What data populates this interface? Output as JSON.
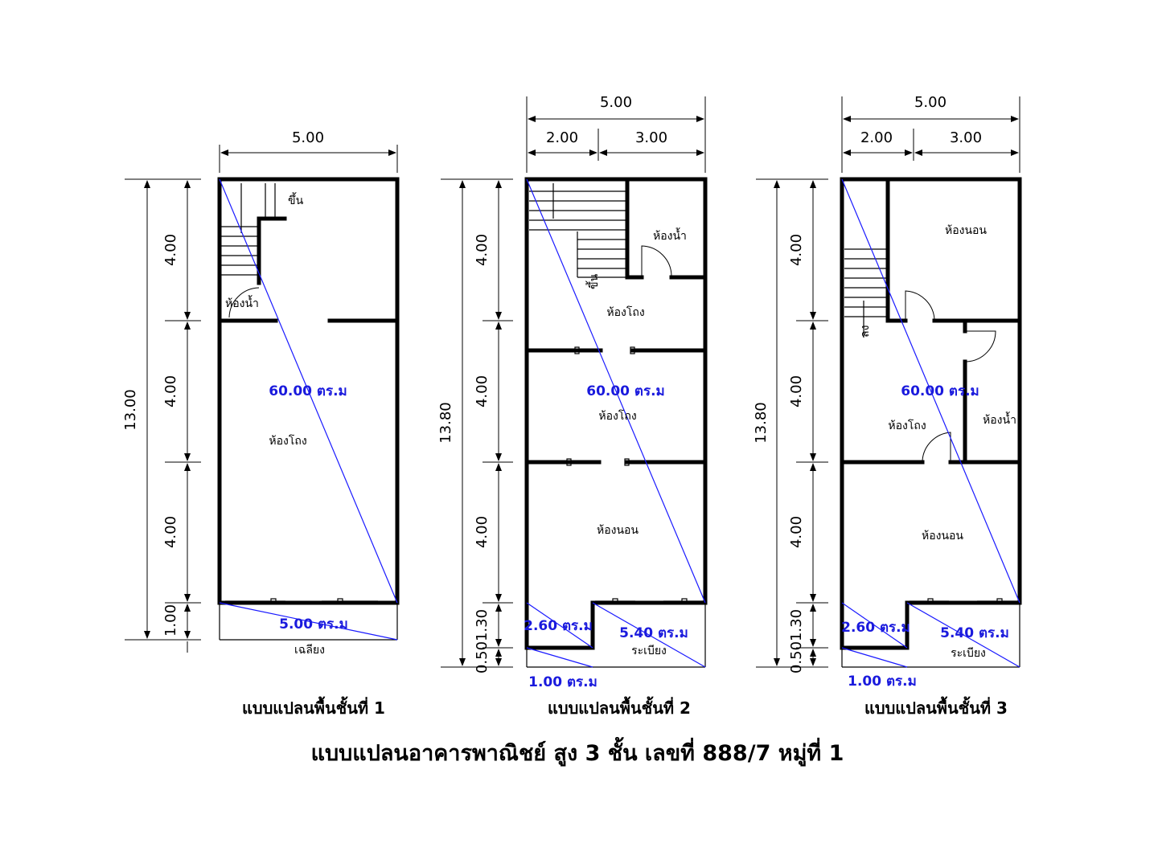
{
  "title": "แบบแปลนอาคารพาณิชย์ สูง 3 ชั้น เลขที่ 888/7 หมู่ที่ 1",
  "plans": [
    {
      "caption": "แบบแปลนพื้นชั้นที่ 1",
      "dims": {
        "width_total": "5.00",
        "height_total": "13.00",
        "seg1": "4.00",
        "seg2": "4.00",
        "seg3": "4.00",
        "seg4": "1.00"
      },
      "rooms": {
        "bath": "ห้องน้ำ",
        "hall": "ห้องโถง",
        "porch": "เฉลียง",
        "up": "ขึ้น"
      },
      "areas": {
        "main": "60.00 ตร.ม",
        "porch": "5.00 ตร.ม"
      }
    },
    {
      "caption": "แบบแปลนพื้นชั้นที่ 2",
      "dims": {
        "width_total": "5.00",
        "width_a": "2.00",
        "width_b": "3.00",
        "height_total": "13.80",
        "seg1": "4.00",
        "seg2": "4.00",
        "seg3": "4.00",
        "seg4": "1.30",
        "seg5": "0.50"
      },
      "rooms": {
        "bath": "ห้องน้ำ",
        "hall_top": "ห้องโถง",
        "hall_mid": "ห้องโถง",
        "bed": "ห้องนอน",
        "balcony": "ระเบียง",
        "up": "ขึ้น"
      },
      "areas": {
        "main": "60.00 ตร.ม",
        "left": "2.60 ตร.ม",
        "right": "5.40 ตร.ม",
        "bottom": "1.00 ตร.ม"
      }
    },
    {
      "caption": "แบบแปลนพื้นชั้นที่ 3",
      "dims": {
        "width_total": "5.00",
        "width_a": "2.00",
        "width_b": "3.00",
        "height_total": "13.80",
        "seg1": "4.00",
        "seg2": "4.00",
        "seg3": "4.00",
        "seg4": "1.30",
        "seg5": "0.50"
      },
      "rooms": {
        "bed_top": "ห้องนอน",
        "hall": "ห้องโถง",
        "bath": "ห้องน้ำ",
        "bed": "ห้องนอน",
        "balcony": "ระเบียง",
        "down": "ลง"
      },
      "areas": {
        "main": "60.00 ตร.ม",
        "left": "2.60 ตร.ม",
        "right": "5.40 ตร.ม",
        "bottom": "1.00 ตร.ม"
      }
    }
  ],
  "colors": {
    "area_text": "#1a1add",
    "diagonal": "#1a1aff",
    "walls": "#000000"
  }
}
